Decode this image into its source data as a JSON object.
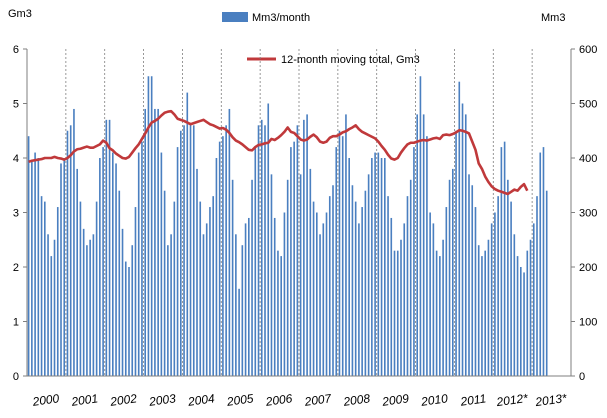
{
  "colors": {
    "bar": "#4a7fc0",
    "line": "#c0393b",
    "divider": "#7f7f7f",
    "axis": "#7f7f7f",
    "text": "#000000"
  },
  "chart_data": {
    "type": "bar+line",
    "left_axis_unit": "Gm3",
    "right_axis_unit": "Mm3",
    "left_ylim": [
      0,
      6
    ],
    "right_ylim": [
      0,
      600
    ],
    "left_ticks": [
      "0",
      "1",
      "2",
      "3",
      "4",
      "5",
      "6"
    ],
    "right_ticks": [
      "0",
      "100",
      "200",
      "300",
      "400",
      "500",
      "600"
    ],
    "year_labels": [
      "2000",
      "2001",
      "2002",
      "2003",
      "2004",
      "2005",
      "2006",
      "2007",
      "2008",
      "2009",
      "2010",
      "2011",
      "2012*",
      "2013*"
    ],
    "grid": false,
    "legend_placement": "top",
    "legend": {
      "bars": "Mm3/month",
      "line": "12-month moving total,  Gm3"
    },
    "monthly_mm3": [
      440,
      395,
      410,
      400,
      330,
      320,
      260,
      220,
      250,
      310,
      390,
      400,
      450,
      460,
      490,
      380,
      320,
      270,
      240,
      250,
      260,
      320,
      400,
      420,
      470,
      470,
      410,
      390,
      340,
      270,
      210,
      200,
      240,
      310,
      410,
      430,
      490,
      550,
      550,
      490,
      490,
      410,
      340,
      240,
      260,
      320,
      420,
      450,
      460,
      520,
      460,
      460,
      380,
      320,
      260,
      280,
      310,
      330,
      400,
      430,
      440,
      460,
      490,
      360,
      260,
      160,
      240,
      280,
      290,
      360,
      420,
      460,
      470,
      460,
      500,
      370,
      290,
      230,
      220,
      300,
      360,
      420,
      430,
      460,
      370,
      470,
      480,
      380,
      320,
      300,
      260,
      280,
      300,
      330,
      350,
      420,
      450,
      440,
      480,
      400,
      350,
      320,
      280,
      310,
      340,
      370,
      400,
      410,
      410,
      400,
      400,
      330,
      290,
      230,
      230,
      250,
      280,
      330,
      360,
      420,
      480,
      550,
      480,
      440,
      300,
      280,
      230,
      220,
      250,
      310,
      360,
      380,
      450,
      540,
      500,
      480,
      370,
      350,
      310,
      240,
      220,
      230,
      250,
      280,
      300,
      330,
      420,
      430,
      360,
      320,
      260,
      220,
      200,
      190,
      230,
      250,
      280,
      330,
      410,
      420,
      340
    ],
    "moving_total_gm3": [
      3.93,
      3.95,
      3.96,
      3.97,
      3.98,
      4.0,
      4.0,
      4.0,
      4.02,
      4.0,
      3.99,
      3.97,
      4.0,
      4.05,
      4.12,
      4.16,
      4.17,
      4.19,
      4.21,
      4.19,
      4.19,
      4.22,
      4.25,
      4.32,
      4.28,
      4.18,
      4.14,
      4.08,
      4.04,
      4.0,
      3.99,
      4.02,
      4.1,
      4.18,
      4.25,
      4.35,
      4.45,
      4.56,
      4.65,
      4.68,
      4.72,
      4.78,
      4.83,
      4.85,
      4.86,
      4.8,
      4.72,
      4.7,
      4.68,
      4.65,
      4.62,
      4.64,
      4.66,
      4.68,
      4.7,
      4.66,
      4.62,
      4.6,
      4.57,
      4.54,
      4.55,
      4.52,
      4.46,
      4.38,
      4.32,
      4.29,
      4.25,
      4.2,
      4.15,
      4.14,
      4.2,
      4.24,
      4.25,
      4.27,
      4.28,
      4.35,
      4.33,
      4.37,
      4.42,
      4.48,
      4.56,
      4.48,
      4.46,
      4.4,
      4.34,
      4.32,
      4.34,
      4.39,
      4.43,
      4.38,
      4.3,
      4.28,
      4.3,
      4.37,
      4.4,
      4.4,
      4.43,
      4.47,
      4.49,
      4.53,
      4.56,
      4.6,
      4.53,
      4.48,
      4.45,
      4.42,
      4.39,
      4.36,
      4.3,
      4.22,
      4.15,
      4.06,
      3.99,
      3.97,
      4.0,
      4.1,
      4.18,
      4.25,
      4.28,
      4.28,
      4.3,
      4.32,
      4.33,
      4.32,
      4.34,
      4.36,
      4.37,
      4.35,
      4.42,
      4.43,
      4.42,
      4.44,
      4.47,
      4.51,
      4.5,
      4.48,
      4.45,
      4.3,
      4.15,
      3.9,
      3.8,
      3.66,
      3.56,
      3.48,
      3.43,
      3.4,
      3.38,
      3.36,
      3.34,
      3.38,
      3.42,
      3.4,
      3.47,
      3.52,
      3.4
    ]
  }
}
